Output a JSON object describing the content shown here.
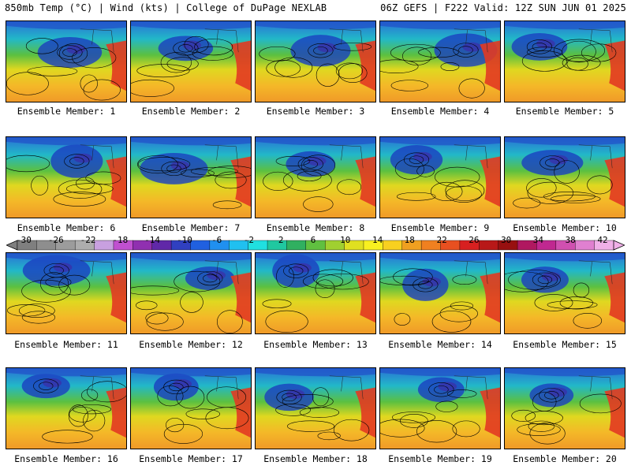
{
  "header": {
    "left": "850mb Temp (°C) | Wind (kts) | College of DuPage NEXLAB",
    "right": "06Z GEFS | F222 Valid: 12Z SUN JUN 01 2025"
  },
  "colorbar": {
    "ticks": [
      "-30",
      "-26",
      "-22",
      "-18",
      "-14",
      "-10",
      "-6",
      "-2",
      "2",
      "6",
      "10",
      "14",
      "18",
      "22",
      "26",
      "30",
      "34",
      "38",
      "42"
    ],
    "colors": [
      "#7f7f7f",
      "#8e8e8e",
      "#9c9c9c",
      "#adadad",
      "#c8a0e0",
      "#c050d0",
      "#9030b0",
      "#6028a8",
      "#3040c0",
      "#2060e0",
      "#2090f0",
      "#20c0f0",
      "#20e0e0",
      "#20c8a0",
      "#30b060",
      "#60c040",
      "#a0d030",
      "#e0e020",
      "#f8f020",
      "#f8d020",
      "#f0a020",
      "#f08020",
      "#e85020",
      "#d82020",
      "#b81818",
      "#981010",
      "#b01860",
      "#c02890",
      "#d050b0",
      "#e080d0",
      "#f0b0e8"
    ]
  },
  "panels": [
    {
      "caption": "Ensemble Member: 1"
    },
    {
      "caption": "Ensemble Member: 2"
    },
    {
      "caption": "Ensemble Member: 3"
    },
    {
      "caption": "Ensemble Member: 4"
    },
    {
      "caption": "Ensemble Member: 5"
    },
    {
      "caption": "Ensemble Member: 6"
    },
    {
      "caption": "Ensemble Member: 7"
    },
    {
      "caption": "Ensemble Member: 8"
    },
    {
      "caption": "Ensemble Member: 9"
    },
    {
      "caption": "Ensemble Member: 10"
    },
    {
      "caption": "Ensemble Member: 11"
    },
    {
      "caption": "Ensemble Member: 12"
    },
    {
      "caption": "Ensemble Member: 13"
    },
    {
      "caption": "Ensemble Member: 14"
    },
    {
      "caption": "Ensemble Member: 15"
    },
    {
      "caption": "Ensemble Member: 16"
    },
    {
      "caption": "Ensemble Member: 17"
    },
    {
      "caption": "Ensemble Member: 18"
    },
    {
      "caption": "Ensemble Member: 19"
    },
    {
      "caption": "Ensemble Member: 20"
    }
  ]
}
